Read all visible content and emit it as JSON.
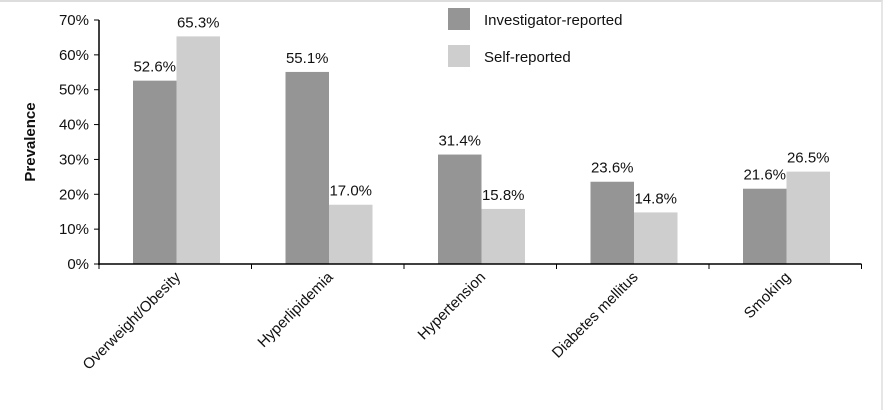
{
  "chart_data": {
    "type": "bar",
    "categories": [
      "Overweight/Obesity",
      "Hyperlipidemia",
      "Hypertension",
      "Diabetes mellitus",
      "Smoking"
    ],
    "series": [
      {
        "name": "Investigator-reported",
        "values": [
          52.6,
          55.1,
          31.4,
          23.6,
          21.6
        ],
        "labels": [
          "52.6%",
          "55.1%",
          "31.4%",
          "23.6%",
          "21.6%"
        ],
        "color": "#959595"
      },
      {
        "name": "Self-reported",
        "values": [
          65.3,
          17.0,
          15.8,
          14.8,
          26.5
        ],
        "labels": [
          "65.3%",
          "17.0%",
          "15.8%",
          "14.8%",
          "26.5%"
        ],
        "color": "#cecece"
      }
    ],
    "ylabel": "Prevalence",
    "ylim": [
      0,
      70
    ],
    "yticks": [
      "0%",
      "10%",
      "20%",
      "30%",
      "40%",
      "50%",
      "60%",
      "70%"
    ],
    "grid": false,
    "legend": "top-center"
  }
}
